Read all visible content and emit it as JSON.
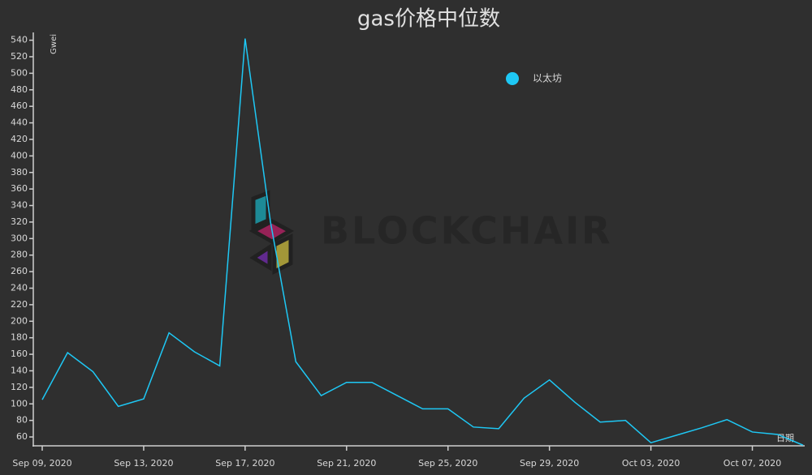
{
  "chart_data": {
    "type": "line",
    "title": "gas价格中位数",
    "y_label": "Gwei",
    "x_label": "日期",
    "watermark": "BLOCKCHAIR",
    "x": [
      "2020-09-09",
      "2020-09-10",
      "2020-09-11",
      "2020-09-12",
      "2020-09-13",
      "2020-09-14",
      "2020-09-15",
      "2020-09-16",
      "2020-09-17",
      "2020-09-18",
      "2020-09-19",
      "2020-09-20",
      "2020-09-21",
      "2020-09-22",
      "2020-09-23",
      "2020-09-24",
      "2020-09-25",
      "2020-09-26",
      "2020-09-27",
      "2020-09-28",
      "2020-09-29",
      "2020-09-30",
      "2020-10-01",
      "2020-10-02",
      "2020-10-03",
      "2020-10-04",
      "2020-10-05",
      "2020-10-06",
      "2020-10-07",
      "2020-10-08",
      "2020-10-09"
    ],
    "series": [
      {
        "name": "以太坊",
        "color": "#1ec8f5",
        "values": [
          105,
          162,
          139,
          97,
          106,
          186,
          163,
          146,
          542,
          320,
          151,
          110,
          126,
          126,
          110,
          94,
          94,
          72,
          70,
          107,
          129,
          102,
          78,
          80,
          53,
          62,
          71,
          81,
          66,
          63,
          50
        ]
      }
    ],
    "xlim": [
      "2020-09-09",
      "2020-10-09"
    ],
    "xticks": [
      {
        "value": "2020-09-09",
        "label": "Sep 09, 2020"
      },
      {
        "value": "2020-09-13",
        "label": "Sep 13, 2020"
      },
      {
        "value": "2020-09-17",
        "label": "Sep 17, 2020"
      },
      {
        "value": "2020-09-21",
        "label": "Sep 21, 2020"
      },
      {
        "value": "2020-09-25",
        "label": "Sep 25, 2020"
      },
      {
        "value": "2020-09-29",
        "label": "Sep 29, 2020"
      },
      {
        "value": "2020-10-03",
        "label": "Oct 03, 2020"
      },
      {
        "value": "2020-10-07",
        "label": "Oct 07, 2020"
      }
    ],
    "ylim": [
      50,
      545
    ],
    "yticks": [
      60,
      80,
      100,
      120,
      140,
      160,
      180,
      200,
      220,
      240,
      260,
      280,
      300,
      320,
      340,
      360,
      380,
      400,
      420,
      440,
      460,
      480,
      500,
      520,
      540
    ],
    "grid": false,
    "legend": "top-right"
  }
}
